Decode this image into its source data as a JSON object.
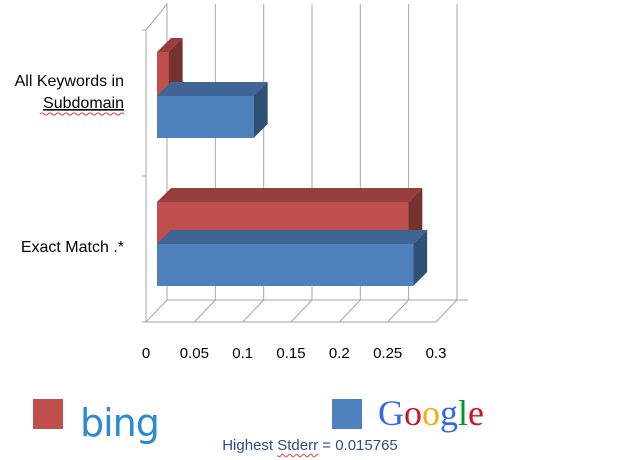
{
  "chart_data": {
    "type": "bar",
    "orientation": "horizontal",
    "categories": [
      "All Keywords  in Subdomain",
      "Exact Match .*"
    ],
    "series": [
      {
        "name": "bing",
        "values": [
          0.012,
          0.26
        ],
        "color": "#c0504d"
      },
      {
        "name": "Google",
        "values": [
          0.1,
          0.265
        ],
        "color": "#4f81bd"
      }
    ],
    "x_ticks": [
      "0",
      "0.05",
      "0.1",
      "0.15",
      "0.2",
      "0.25",
      "0.3"
    ],
    "xlim": [
      0,
      0.3
    ],
    "grid": true,
    "legend_position": "bottom",
    "legend_brands": [
      "bing",
      "Google"
    ],
    "footnote": "Highest Stderr = 0.015765"
  },
  "category_lines": [
    [
      "All Keywords  in",
      "Subdomain"
    ],
    [
      "Exact Match .*"
    ]
  ]
}
